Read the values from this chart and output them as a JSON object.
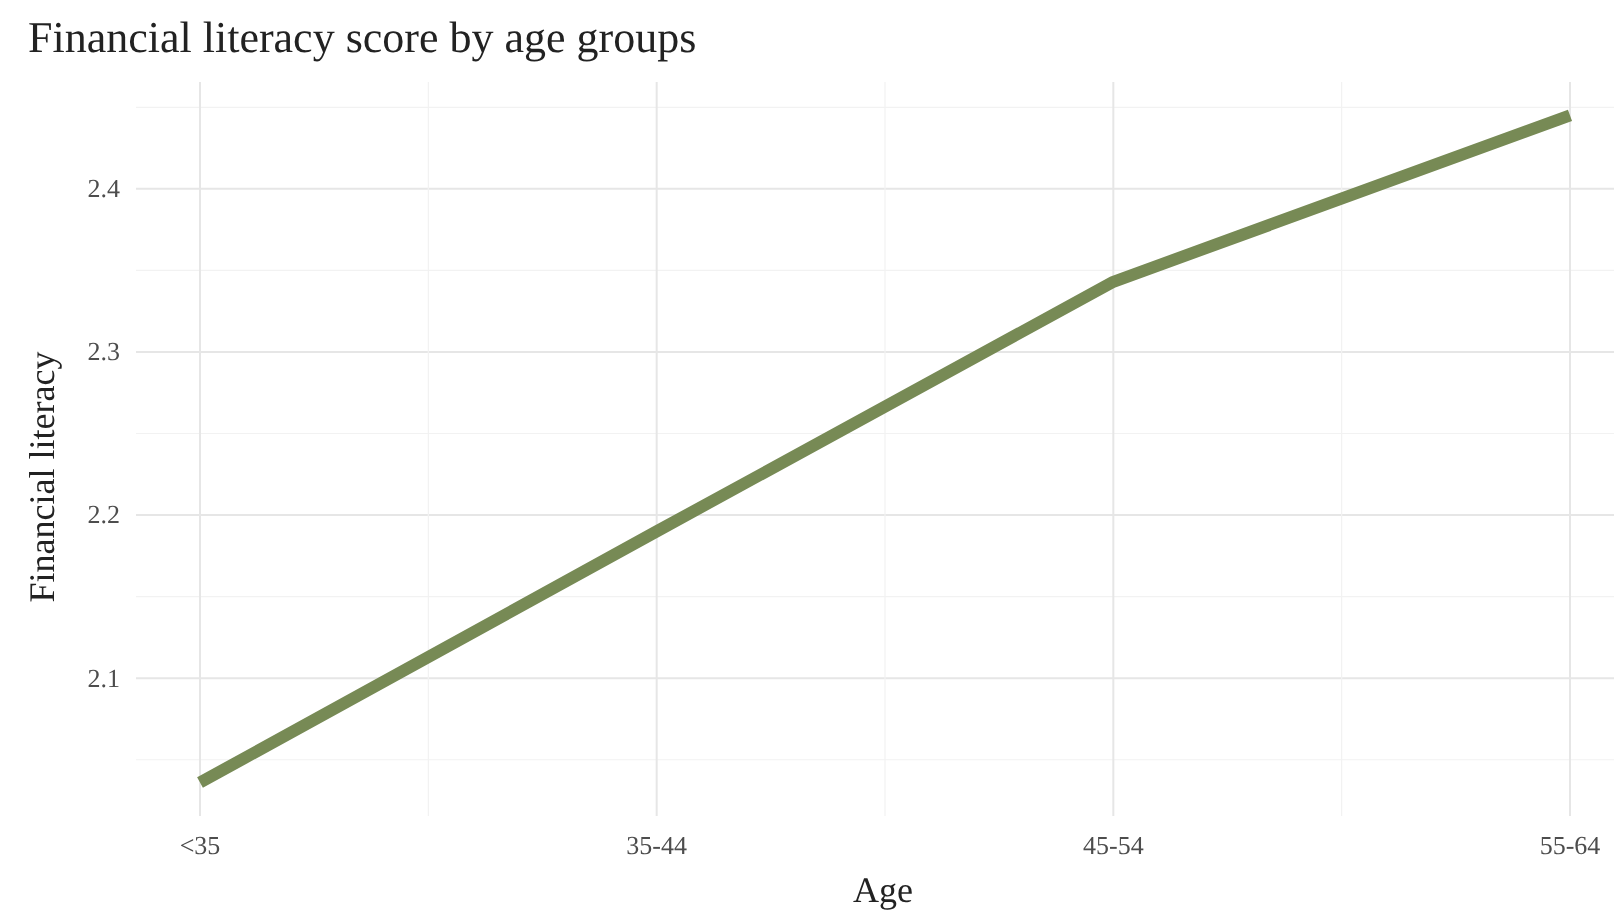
{
  "chart_data": {
    "type": "line",
    "title": "Financial literacy score by age groups",
    "xlabel": "Age",
    "ylabel": "Financial literacy",
    "categories": [
      "<35",
      "35-44",
      "45-54",
      "55-64"
    ],
    "series": [
      {
        "color": "#778a55",
        "values": [
          2.036,
          2.19,
          2.343,
          2.445
        ]
      }
    ],
    "ylim": [
      2.0155,
      2.4655
    ],
    "yticks": [
      {
        "value": 2.05,
        "label": null
      },
      2.1,
      {
        "value": 2.15,
        "label": null
      },
      2.2,
      {
        "value": 2.25,
        "label": null
      },
      2.3,
      {
        "value": 2.35,
        "label": null
      },
      2.4,
      {
        "value": 2.45,
        "label": null
      }
    ],
    "grid": true,
    "marker": "none",
    "line_style": "solid"
  }
}
